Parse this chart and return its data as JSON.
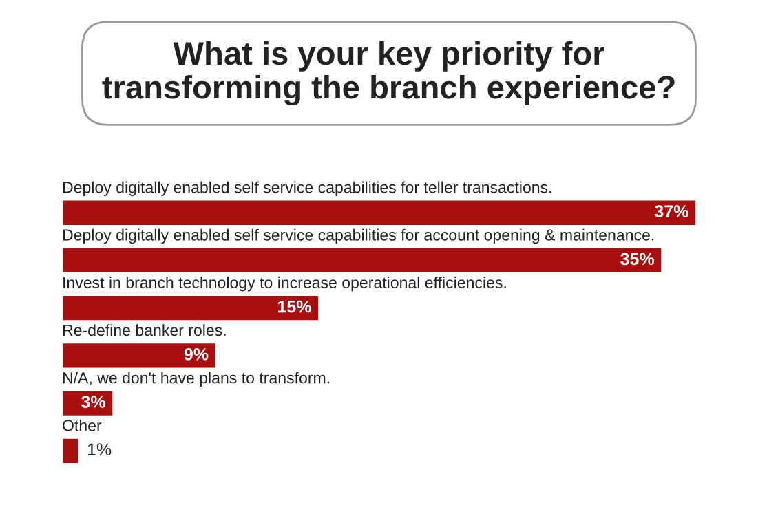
{
  "chart_data": {
    "type": "bar",
    "orientation": "horizontal",
    "title": "What is your key priority for\ntransforming the branch experience?",
    "categories": [
      "Deploy digitally enabled self service capabilities for teller transactions.",
      "Deploy digitally enabled self service capabilities for account opening & maintenance.",
      "Invest in branch technology to increase operational efficiencies.",
      "Re-define banker roles.",
      "N/A, we don't have plans to transform.",
      "Other"
    ],
    "values": [
      37,
      35,
      15,
      9,
      3,
      1
    ],
    "value_labels": [
      "37%",
      "35%",
      "15%",
      "9%",
      "3%",
      "1%"
    ],
    "color": "#a90f0f",
    "tick_labels": false
  }
}
